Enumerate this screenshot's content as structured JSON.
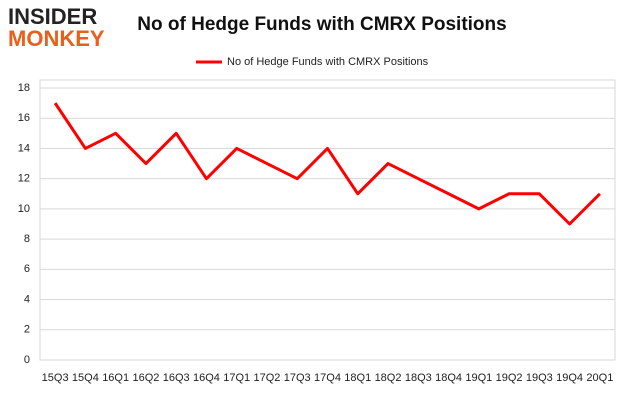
{
  "logo": {
    "line1": "INSIDER",
    "line2": "MONKEY"
  },
  "chart_data": {
    "type": "line",
    "title": "No of Hedge Funds with CMRX Positions",
    "categories": [
      "15Q3",
      "15Q4",
      "16Q1",
      "16Q2",
      "16Q3",
      "16Q4",
      "17Q1",
      "17Q2",
      "17Q3",
      "17Q4",
      "18Q1",
      "18Q2",
      "18Q3",
      "18Q4",
      "19Q1",
      "19Q2",
      "19Q3",
      "19Q4",
      "20Q1"
    ],
    "series": [
      {
        "name": "No of Hedge Funds with CMRX Positions",
        "color": "#ff0000",
        "values": [
          17,
          14,
          15,
          13,
          15,
          12,
          14,
          13,
          12,
          14,
          11,
          13,
          12,
          11,
          10,
          11,
          11,
          9,
          11
        ]
      }
    ],
    "ylim": [
      0,
      18
    ],
    "yticks": [
      0,
      2,
      4,
      6,
      8,
      10,
      12,
      14,
      16,
      18
    ],
    "grid": true
  }
}
